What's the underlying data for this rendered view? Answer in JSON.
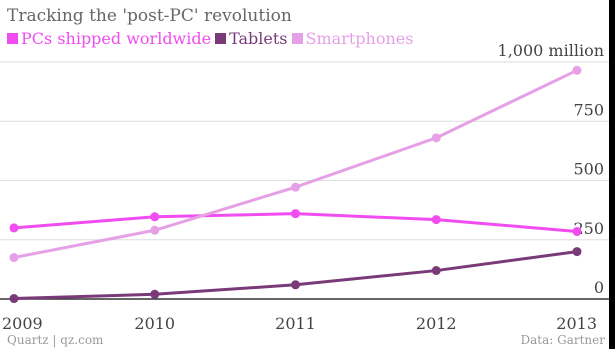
{
  "chart_data": {
    "type": "line",
    "title": "Tracking the 'post-PC' revolution",
    "x": [
      "2009",
      "2010",
      "2011",
      "2012",
      "2013"
    ],
    "series": [
      {
        "name": "PCs shipped worldwide",
        "values": [
          300,
          347,
          360,
          335,
          285
        ],
        "color": "#f04cf0"
      },
      {
        "name": "Tablets",
        "values": [
          2,
          20,
          60,
          120,
          200
        ],
        "color": "#7a3a78"
      },
      {
        "name": "Smartphones",
        "values": [
          175,
          290,
          472,
          680,
          965
        ],
        "color": "#e6a0e6"
      }
    ],
    "y_ticks": [
      "0",
      "250",
      "500",
      "750",
      "1,000 million"
    ],
    "ylim": [
      0,
      1000
    ],
    "grid": true,
    "legend_position": "top-left"
  },
  "footer": {
    "source_left": "Quartz | qz.com",
    "source_right": "Data: Gartner"
  }
}
